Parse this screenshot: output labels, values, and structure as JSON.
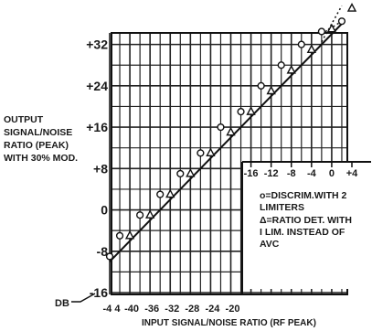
{
  "chart_data": {
    "type": "line",
    "ylabel_lines": [
      "OUTPUT",
      "SIGNAL/NOISE",
      "RATIO (PEAK)",
      "WITH 30% MOD."
    ],
    "xlabel": "INPUT SIGNAL/NOISE RATIO (RF PEAK)",
    "x_unit": "DB",
    "xlim": [
      -44,
      4
    ],
    "ylim": [
      -16,
      36
    ],
    "y_ticks": [
      -16,
      -8,
      0,
      8,
      16,
      24,
      32
    ],
    "y_tick_labels": [
      "-16",
      "-8",
      "0",
      "+8",
      "+16",
      "+24",
      "+32"
    ],
    "x_ticks_bottom": [
      -44,
      -40,
      -36,
      -32,
      -28,
      -24,
      -20
    ],
    "x_tick_labels_bottom": [
      "-4 4",
      "-40",
      "-36",
      "-32",
      "-28",
      "-24",
      "-20"
    ],
    "x_ticks_inset": [
      -16,
      -12,
      -8,
      -4,
      0,
      4
    ],
    "x_tick_labels_inset": [
      "-16",
      "-12",
      "-8",
      "-4",
      "0",
      "+4"
    ],
    "legend": [
      {
        "symbol": "circle",
        "text_lines": [
          "o=DISCRIM.WITH 2",
          "LIMITERS"
        ]
      },
      {
        "symbol": "triangle",
        "text_lines": [
          "Δ=RATIO DET. WITH",
          "I LIM. INSTEAD OF",
          "AVC"
        ]
      }
    ],
    "series": [
      {
        "symbol": "circle",
        "x": [
          -44,
          -42,
          -38,
          -34,
          -30,
          -26,
          -22,
          -18,
          -14,
          -10,
          -6,
          -2,
          2
        ],
        "y": [
          -9,
          -5,
          -1,
          3,
          7,
          11,
          16,
          19,
          24,
          28,
          32,
          34.5,
          36.5
        ]
      },
      {
        "symbol": "triangle",
        "x": [
          -40,
          -36,
          -32,
          -28,
          -24,
          -20,
          -16,
          -12,
          -8,
          -4,
          0,
          4
        ],
        "y": [
          -5,
          -1,
          3,
          7,
          11,
          15,
          19,
          23,
          27,
          31,
          35,
          39
        ]
      }
    ],
    "fit_line": {
      "x": [
        -44,
        2
      ],
      "y": [
        -10,
        36
      ]
    }
  }
}
